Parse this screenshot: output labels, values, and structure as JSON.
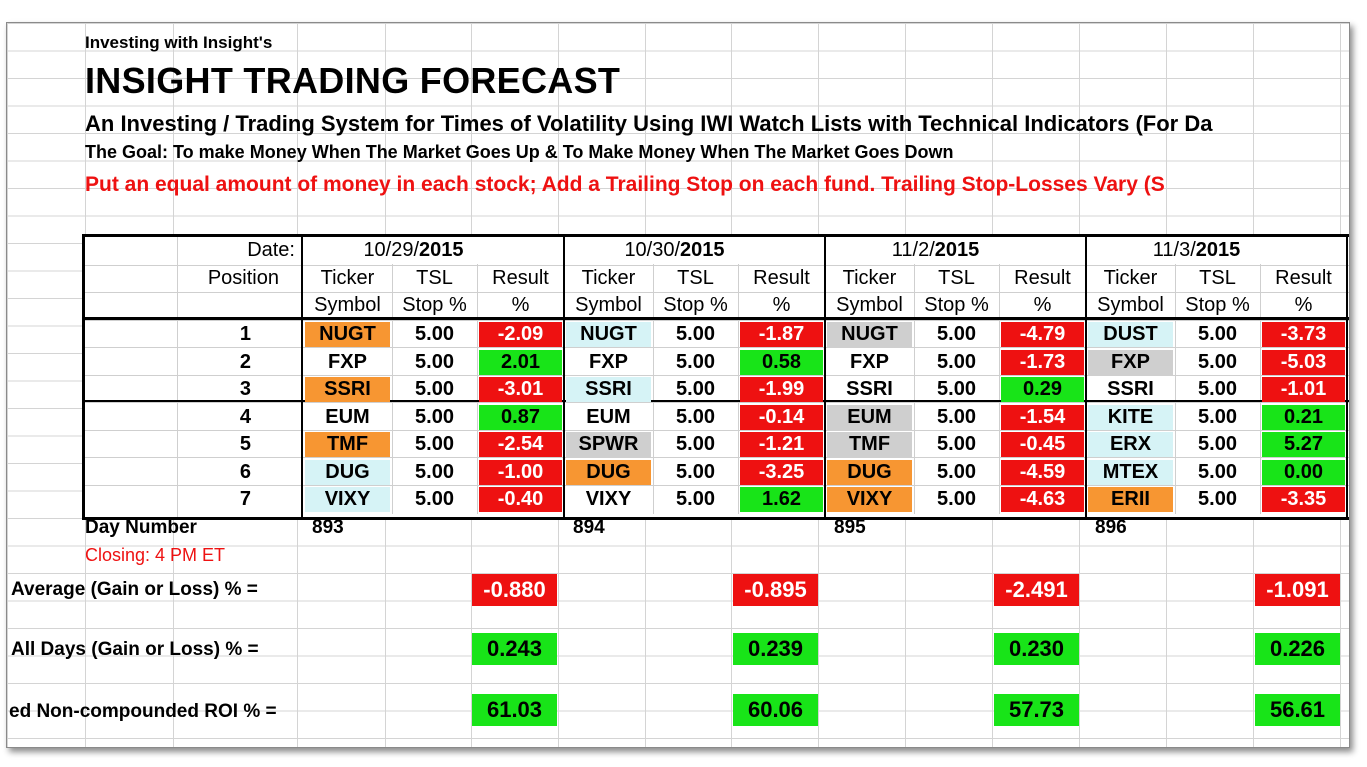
{
  "header": {
    "subtitle": "Investing with Insight's",
    "title": "INSIGHT TRADING FORECAST",
    "system": "An Investing / Trading System for Times of Volatility Using IWI Watch Lists with Technical Indicators (For Da",
    "goal": "The Goal: To make Money When The Market Goes Up & To Make Money When The Market Goes Down",
    "instruction": "Put an equal amount of money in each stock; Add a Trailing Stop on each fund. Trailing Stop-Losses Vary (S"
  },
  "table": {
    "date_label": "Date:",
    "position_label": "Position",
    "col_headers": {
      "ticker": "Ticker",
      "symbol": "Symbol",
      "tsl": "TSL",
      "stop": "Stop %",
      "result": "Result",
      "pct": "%"
    },
    "positions": [
      "1",
      "2",
      "3",
      "4",
      "5",
      "6",
      "7"
    ],
    "days": [
      {
        "date_prefix": "10/29/",
        "date_year": "2015",
        "rows": [
          {
            "ticker": "NUGT",
            "tsl": "5.00",
            "result": "-2.09",
            "tc": "orange",
            "rc": "red"
          },
          {
            "ticker": "FXP",
            "tsl": "5.00",
            "result": "2.01",
            "tc": "none",
            "rc": "green"
          },
          {
            "ticker": "SSRI",
            "tsl": "5.00",
            "result": "-3.01",
            "tc": "orange",
            "rc": "red"
          },
          {
            "ticker": "EUM",
            "tsl": "5.00",
            "result": "0.87",
            "tc": "none",
            "rc": "green"
          },
          {
            "ticker": "TMF",
            "tsl": "5.00",
            "result": "-2.54",
            "tc": "orange",
            "rc": "red"
          },
          {
            "ticker": "DUG",
            "tsl": "5.00",
            "result": "-1.00",
            "tc": "cyan",
            "rc": "red"
          },
          {
            "ticker": "VIXY",
            "tsl": "5.00",
            "result": "-0.40",
            "tc": "cyan",
            "rc": "red"
          }
        ],
        "day_number": "893",
        "average": "-0.880",
        "average_color": "red",
        "all_days": "0.243",
        "all_days_color": "green",
        "roi": "61.03",
        "roi_color": "green"
      },
      {
        "date_prefix": "10/30/",
        "date_year": "2015",
        "rows": [
          {
            "ticker": "NUGT",
            "tsl": "5.00",
            "result": "-1.87",
            "tc": "cyan",
            "rc": "red"
          },
          {
            "ticker": "FXP",
            "tsl": "5.00",
            "result": "0.58",
            "tc": "none",
            "rc": "green"
          },
          {
            "ticker": "SSRI",
            "tsl": "5.00",
            "result": "-1.99",
            "tc": "cyan",
            "rc": "red"
          },
          {
            "ticker": "EUM",
            "tsl": "5.00",
            "result": "-0.14",
            "tc": "none",
            "rc": "red"
          },
          {
            "ticker": "SPWR",
            "tsl": "5.00",
            "result": "-1.21",
            "tc": "gray",
            "rc": "red"
          },
          {
            "ticker": "DUG",
            "tsl": "5.00",
            "result": "-3.25",
            "tc": "orange",
            "rc": "red"
          },
          {
            "ticker": "VIXY",
            "tsl": "5.00",
            "result": "1.62",
            "tc": "none",
            "rc": "green"
          }
        ],
        "day_number": "894",
        "average": "-0.895",
        "average_color": "red",
        "all_days": "0.239",
        "all_days_color": "green",
        "roi": "60.06",
        "roi_color": "green"
      },
      {
        "date_prefix": "11/2/",
        "date_year": "2015",
        "rows": [
          {
            "ticker": "NUGT",
            "tsl": "5.00",
            "result": "-4.79",
            "tc": "gray",
            "rc": "red"
          },
          {
            "ticker": "FXP",
            "tsl": "5.00",
            "result": "-1.73",
            "tc": "none",
            "rc": "red"
          },
          {
            "ticker": "SSRI",
            "tsl": "5.00",
            "result": "0.29",
            "tc": "none",
            "rc": "green"
          },
          {
            "ticker": "EUM",
            "tsl": "5.00",
            "result": "-1.54",
            "tc": "gray",
            "rc": "red"
          },
          {
            "ticker": "TMF",
            "tsl": "5.00",
            "result": "-0.45",
            "tc": "gray",
            "rc": "red"
          },
          {
            "ticker": "DUG",
            "tsl": "5.00",
            "result": "-4.59",
            "tc": "orange",
            "rc": "red"
          },
          {
            "ticker": "VIXY",
            "tsl": "5.00",
            "result": "-4.63",
            "tc": "orange",
            "rc": "red"
          }
        ],
        "day_number": "895",
        "average": "-2.491",
        "average_color": "red",
        "all_days": "0.230",
        "all_days_color": "green",
        "roi": "57.73",
        "roi_color": "green"
      },
      {
        "date_prefix": "11/3/",
        "date_year": "2015",
        "rows": [
          {
            "ticker": "DUST",
            "tsl": "5.00",
            "result": "-3.73",
            "tc": "cyan",
            "rc": "red"
          },
          {
            "ticker": "FXP",
            "tsl": "5.00",
            "result": "-5.03",
            "tc": "gray",
            "rc": "red"
          },
          {
            "ticker": "SSRI",
            "tsl": "5.00",
            "result": "-1.01",
            "tc": "none",
            "rc": "red"
          },
          {
            "ticker": "KITE",
            "tsl": "5.00",
            "result": "0.21",
            "tc": "cyan",
            "rc": "green"
          },
          {
            "ticker": "ERX",
            "tsl": "5.00",
            "result": "5.27",
            "tc": "cyan",
            "rc": "green"
          },
          {
            "ticker": "MTEX",
            "tsl": "5.00",
            "result": "0.00",
            "tc": "cyan",
            "rc": "green"
          },
          {
            "ticker": "ERII",
            "tsl": "5.00",
            "result": "-3.35",
            "tc": "orange",
            "rc": "red"
          }
        ],
        "day_number": "896",
        "average": "-1.091",
        "average_color": "red",
        "all_days": "0.226",
        "all_days_color": "green",
        "roi": "56.61",
        "roi_color": "green"
      }
    ]
  },
  "footer": {
    "day_number_label": "Day Number",
    "closing": "Closing: 4 PM ET",
    "average_label": "Average (Gain or Loss) % =",
    "all_days_label": "All Days (Gain or Loss) % =",
    "roi_label": "ed Non-compounded ROI % ="
  },
  "colors": {
    "orange": "#f79632",
    "cyan": "#d6f3f6",
    "gray": "#cfcfcf",
    "red": "#ee1111",
    "green": "#18e418",
    "instruction_red": "#ee1111"
  }
}
